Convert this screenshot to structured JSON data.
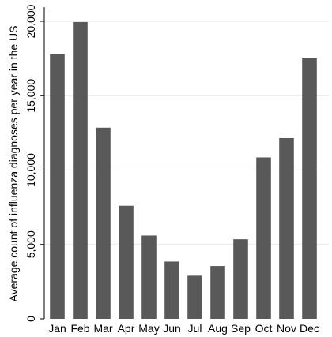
{
  "chart_data": {
    "type": "bar",
    "title": "",
    "xlabel": "",
    "ylabel": "Average count of influenza diagnoses per year in the US",
    "categories": [
      "Jan",
      "Feb",
      "Mar",
      "Apr",
      "May",
      "Jun",
      "Jul",
      "Aug",
      "Sep",
      "Oct",
      "Nov",
      "Dec"
    ],
    "values": [
      17800,
      19950,
      12850,
      7600,
      5600,
      3850,
      2900,
      3550,
      5350,
      10850,
      12150,
      17550
    ],
    "ylim": [
      0,
      20000
    ],
    "yticks": [
      0,
      5000,
      10000,
      15000,
      20000
    ],
    "ytick_labels": [
      "0",
      "5,000",
      "10,000",
      "15,000",
      "20,000"
    ],
    "grid": true,
    "bar_color": "#595959",
    "grid_color": "#e6e6e6",
    "axis_color": "#000000"
  }
}
